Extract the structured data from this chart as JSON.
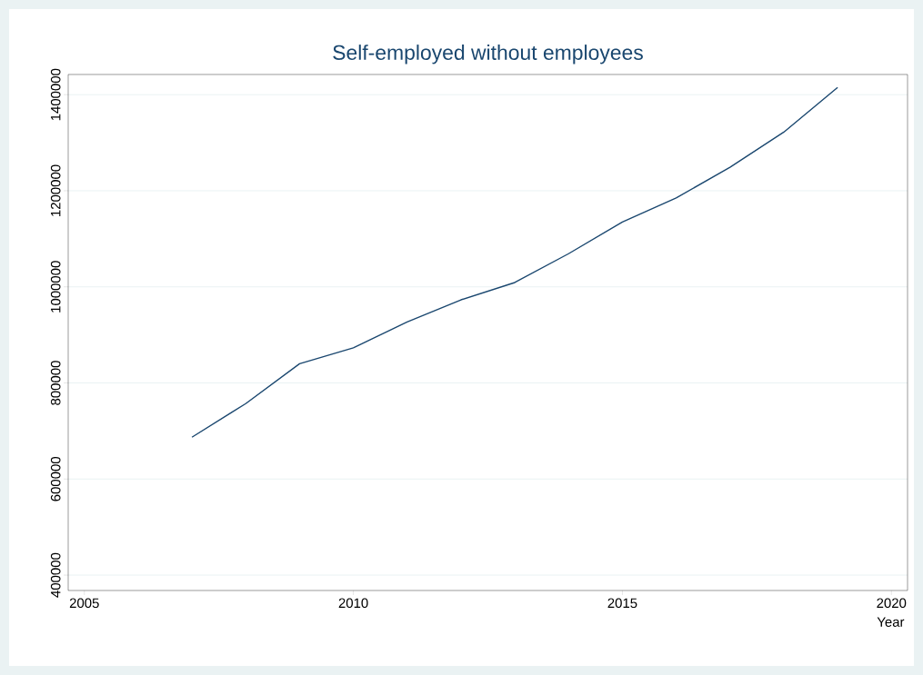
{
  "chart_data": {
    "type": "line",
    "title": "Self-employed without employees",
    "xlabel": "Year",
    "x": [
      2007,
      2008,
      2009,
      2010,
      2011,
      2012,
      2013,
      2014,
      2015,
      2016,
      2017,
      2018,
      2019
    ],
    "series": [
      {
        "color": "#1a476f",
        "values": [
          687000,
          757000,
          840000,
          873000,
          927000,
          973000,
          1009000,
          1069000,
          1135000,
          1185000,
          1249000,
          1322000,
          1415000
        ]
      }
    ],
    "xlim": [
      2004.7,
      2020.3
    ],
    "ylim": [
      368000,
      1442000
    ],
    "xticks": [
      2005,
      2010,
      2015,
      2020
    ],
    "yticks": [
      400000,
      600000,
      800000,
      1000000,
      1200000,
      1400000
    ],
    "grid": "y",
    "marker": "none",
    "line_style": "solid"
  }
}
